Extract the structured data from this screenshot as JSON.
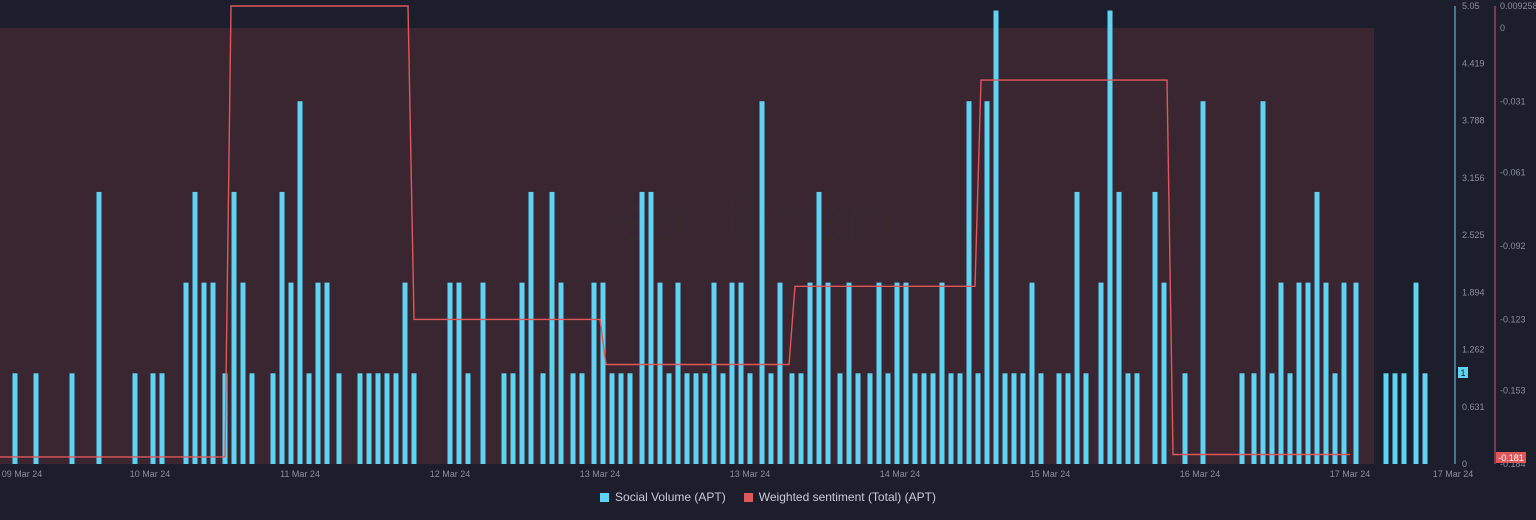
{
  "watermark": "·santiment·",
  "legend": {
    "social": "Social Volume (APT)",
    "sentiment": "Weighted sentiment (Total) (APT)"
  },
  "colors": {
    "background": "#1c1f2b",
    "bars": "#5ed3f3",
    "line": "#e0575b",
    "fill": "#3e2731",
    "grid": "#2a2e3b"
  },
  "badges": {
    "volume_current": "1",
    "sentiment_current": "-0.181"
  },
  "chart_data": {
    "type": "bar",
    "x_tick_labels": [
      "09 Mar 24",
      "10 Mar 24",
      "11 Mar 24",
      "12 Mar 24",
      "13 Mar 24",
      "13 Mar 24",
      "14 Mar 24",
      "15 Mar 24",
      "16 Mar 24",
      "17 Mar 24",
      "17 Mar 24"
    ],
    "y_left_ticks": [
      "5.05",
      "4.419",
      "3.788",
      "3.156",
      "2.525",
      "1.894",
      "1.262",
      "0.631",
      "0"
    ],
    "y_right_ticks": [
      "0.009258",
      "0",
      "-0.031",
      "-0.061",
      "-0.092",
      "-0.123",
      "-0.153",
      "-0.184"
    ],
    "y_left_range": [
      0,
      5.05
    ],
    "y_right_range": [
      -0.184,
      0.009258
    ],
    "grid": false,
    "legend_position": "bottom-center",
    "series": [
      {
        "name": "Social Volume (APT)",
        "kind": "bar",
        "axis": "left",
        "points": [
          [
            0.5,
            1
          ],
          [
            1.2,
            1
          ],
          [
            2.4,
            1
          ],
          [
            3.3,
            3
          ],
          [
            4.5,
            1
          ],
          [
            5.1,
            1
          ],
          [
            5.4,
            1
          ],
          [
            6.2,
            2
          ],
          [
            6.5,
            3
          ],
          [
            6.8,
            2
          ],
          [
            7.1,
            2
          ],
          [
            7.5,
            1
          ],
          [
            7.8,
            3
          ],
          [
            8.1,
            2
          ],
          [
            8.4,
            1
          ],
          [
            9.1,
            1
          ],
          [
            9.4,
            3
          ],
          [
            9.7,
            2
          ],
          [
            10.0,
            4
          ],
          [
            10.3,
            1
          ],
          [
            10.6,
            2
          ],
          [
            10.9,
            2
          ],
          [
            11.3,
            1
          ],
          [
            12.0,
            1
          ],
          [
            12.3,
            1
          ],
          [
            12.6,
            1
          ],
          [
            12.9,
            1
          ],
          [
            13.2,
            1
          ],
          [
            13.5,
            2
          ],
          [
            13.8,
            1
          ],
          [
            15.0,
            2
          ],
          [
            15.3,
            2
          ],
          [
            15.6,
            1
          ],
          [
            16.1,
            2
          ],
          [
            16.8,
            1
          ],
          [
            17.1,
            1
          ],
          [
            17.4,
            2
          ],
          [
            17.7,
            3
          ],
          [
            18.1,
            1
          ],
          [
            18.4,
            3
          ],
          [
            18.7,
            2
          ],
          [
            19.1,
            1
          ],
          [
            19.4,
            1
          ],
          [
            19.8,
            2
          ],
          [
            20.1,
            2
          ],
          [
            20.4,
            1
          ],
          [
            20.7,
            1
          ],
          [
            21.0,
            1
          ],
          [
            21.4,
            3
          ],
          [
            21.7,
            3
          ],
          [
            22.0,
            2
          ],
          [
            22.3,
            1
          ],
          [
            22.6,
            2
          ],
          [
            22.9,
            1
          ],
          [
            23.2,
            1
          ],
          [
            23.5,
            1
          ],
          [
            23.8,
            2
          ],
          [
            24.1,
            1
          ],
          [
            24.4,
            2
          ],
          [
            24.7,
            2
          ],
          [
            25.0,
            1
          ],
          [
            25.4,
            4
          ],
          [
            25.7,
            1
          ],
          [
            26.0,
            2
          ],
          [
            26.4,
            1
          ],
          [
            26.7,
            1
          ],
          [
            27.0,
            2
          ],
          [
            27.3,
            3
          ],
          [
            27.6,
            2
          ],
          [
            28.0,
            1
          ],
          [
            28.3,
            2
          ],
          [
            28.6,
            1
          ],
          [
            29.0,
            1
          ],
          [
            29.3,
            2
          ],
          [
            29.6,
            1
          ],
          [
            29.9,
            2
          ],
          [
            30.2,
            2
          ],
          [
            30.5,
            1
          ],
          [
            30.8,
            1
          ],
          [
            31.1,
            1
          ],
          [
            31.4,
            2
          ],
          [
            31.7,
            1
          ],
          [
            32.0,
            1
          ],
          [
            32.3,
            4
          ],
          [
            32.6,
            1
          ],
          [
            32.9,
            4
          ],
          [
            33.2,
            5
          ],
          [
            33.5,
            1
          ],
          [
            33.8,
            1
          ],
          [
            34.1,
            1
          ],
          [
            34.4,
            2
          ],
          [
            34.7,
            1
          ],
          [
            35.3,
            1
          ],
          [
            35.6,
            1
          ],
          [
            35.9,
            3
          ],
          [
            36.2,
            1
          ],
          [
            36.7,
            2
          ],
          [
            37.0,
            5
          ],
          [
            37.3,
            3
          ],
          [
            37.6,
            1
          ],
          [
            37.9,
            1
          ],
          [
            38.5,
            3
          ],
          [
            38.8,
            2
          ],
          [
            39.5,
            1
          ],
          [
            40.1,
            4
          ],
          [
            41.4,
            1
          ],
          [
            41.8,
            1
          ],
          [
            42.1,
            4
          ],
          [
            42.4,
            1
          ],
          [
            42.7,
            2
          ],
          [
            43.0,
            1
          ],
          [
            43.3,
            2
          ],
          [
            43.6,
            2
          ],
          [
            43.9,
            3
          ],
          [
            44.2,
            2
          ],
          [
            44.5,
            1
          ],
          [
            44.8,
            2
          ],
          [
            45.2,
            2
          ],
          [
            46.2,
            1
          ],
          [
            46.5,
            1
          ],
          [
            46.8,
            1
          ],
          [
            47.2,
            2
          ],
          [
            47.5,
            1
          ]
        ]
      },
      {
        "name": "Weighted sentiment (Total) (APT)",
        "kind": "line",
        "axis": "right",
        "points": [
          [
            0.0,
            -0.181
          ],
          [
            7.5,
            -0.181
          ],
          [
            7.7,
            0.009258
          ],
          [
            13.6,
            0.009258
          ],
          [
            13.8,
            -0.123
          ],
          [
            20.0,
            -0.123
          ],
          [
            20.2,
            -0.142
          ],
          [
            26.3,
            -0.142
          ],
          [
            26.5,
            -0.109
          ],
          [
            32.5,
            -0.109
          ],
          [
            32.7,
            -0.022
          ],
          [
            38.9,
            -0.022
          ],
          [
            39.1,
            -0.18
          ],
          [
            45.0,
            -0.18
          ]
        ],
        "fill_to": 0
      }
    ]
  }
}
